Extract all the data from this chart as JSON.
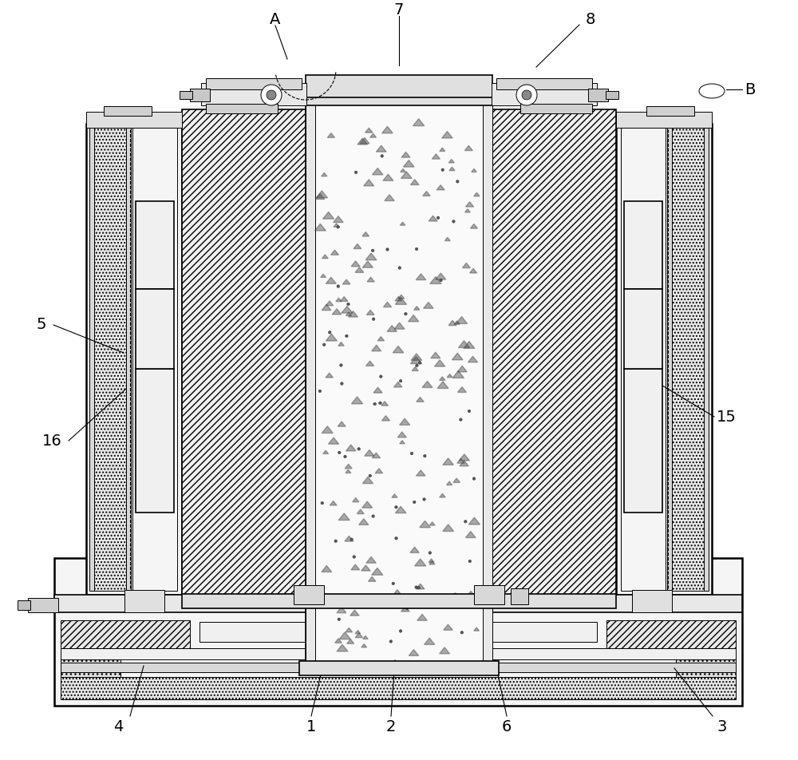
{
  "bg_color": "#ffffff",
  "lc": "#000000",
  "lw_main": 1.2,
  "lw_thin": 0.7,
  "lw_thick": 1.8,
  "triangles_seed": 42,
  "triangles_count": 180,
  "dots_count": 60
}
